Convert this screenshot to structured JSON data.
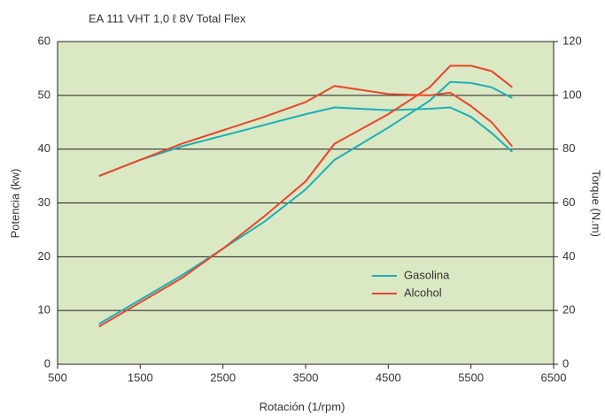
{
  "chart_data": {
    "type": "line",
    "title": "EA 111 VHT 1,0 ℓ 8V Total Flex",
    "x_label": "Rotación (1/rpm)",
    "y_label": "Potencia (kw)",
    "y2_label": "Torque (N.m)",
    "x": [
      1000,
      1500,
      2000,
      2500,
      3000,
      3500,
      3850,
      4500,
      5000,
      5250,
      5500,
      5750,
      6000
    ],
    "series": [
      {
        "name": "Gasolina",
        "color": "#1ab0b8",
        "values": [
          7.5,
          12,
          16.5,
          21.5,
          26.5,
          32.5,
          38,
          44,
          49,
          52.5,
          52.3,
          51.5,
          49.5
        ],
        "y2_values": [
          70,
          76,
          81,
          85,
          89,
          93,
          95.5,
          94.5,
          95,
          95.5,
          92,
          86,
          79
        ]
      },
      {
        "name": "Alcohol",
        "color": "#e8452c",
        "values": [
          7,
          11.5,
          16,
          21.5,
          27.5,
          34,
          41,
          46.5,
          51.5,
          55.5,
          55.5,
          54.5,
          51.5
        ],
        "y2_values": [
          70,
          76,
          82,
          87,
          92,
          97.5,
          103.5,
          100.5,
          100,
          101,
          96,
          90,
          81
        ]
      }
    ],
    "xlim": [
      500,
      6500
    ],
    "xticks": [
      500,
      1500,
      2500,
      3500,
      4500,
      5500,
      6500
    ],
    "ylim": [
      0,
      60
    ],
    "yticks": [
      0,
      10,
      20,
      30,
      40,
      50,
      60
    ],
    "y2lim": [
      0,
      120
    ],
    "y2ticks": [
      0,
      20,
      40,
      60,
      80,
      100,
      120
    ],
    "grid": true,
    "legend": "lower right",
    "background": "#dbe8c4"
  }
}
